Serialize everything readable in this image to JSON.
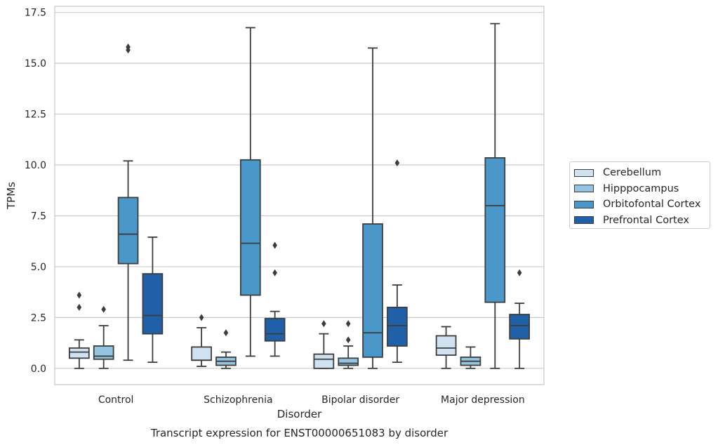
{
  "chart_data": {
    "type": "box",
    "caption": "Transcript expression for ENST00000651083 by disorder",
    "xlabel": "Disorder",
    "ylabel": "TPMs",
    "ylim": [
      -0.8,
      17.8
    ],
    "yticks": [
      "0.0",
      "2.5",
      "5.0",
      "7.5",
      "10.0",
      "12.5",
      "15.0",
      "17.5"
    ],
    "ytick_values": [
      0,
      2.5,
      5,
      7.5,
      10,
      12.5,
      15,
      17.5
    ],
    "grid": true,
    "legend_position": "right",
    "categories": [
      "Control",
      "Schizophrenia",
      "Bipolar disorder",
      "Major depression"
    ],
    "series": [
      {
        "name": "Cerebellum",
        "color": "#d0e1f2",
        "boxes": [
          {
            "whisker_low": 0.0,
            "q1": 0.5,
            "median": 0.8,
            "q3": 1.0,
            "whisker_high": 1.4,
            "outliers": [
              3.0,
              3.6
            ]
          },
          {
            "whisker_low": 0.1,
            "q1": 0.4,
            "median": 0.4,
            "q3": 1.05,
            "whisker_high": 2.0,
            "outliers": [
              2.5
            ]
          },
          {
            "whisker_low": 0.0,
            "q1": 0.0,
            "median": 0.45,
            "q3": 0.7,
            "whisker_high": 1.7,
            "outliers": [
              2.2
            ]
          },
          {
            "whisker_low": 0.0,
            "q1": 0.65,
            "median": 1.0,
            "q3": 1.6,
            "whisker_high": 2.05,
            "outliers": []
          }
        ]
      },
      {
        "name": "Hipppocampus",
        "color": "#94c4df",
        "boxes": [
          {
            "whisker_low": 0.0,
            "q1": 0.45,
            "median": 0.6,
            "q3": 1.1,
            "whisker_high": 2.1,
            "outliers": [
              2.9
            ]
          },
          {
            "whisker_low": 0.0,
            "q1": 0.15,
            "median": 0.35,
            "q3": 0.55,
            "whisker_high": 0.8,
            "outliers": [
              1.75
            ]
          },
          {
            "whisker_low": 0.0,
            "q1": 0.15,
            "median": 0.25,
            "q3": 0.5,
            "whisker_high": 1.1,
            "outliers": [
              1.4,
              2.2
            ]
          },
          {
            "whisker_low": 0.0,
            "q1": 0.15,
            "median": 0.35,
            "q3": 0.55,
            "whisker_high": 1.05,
            "outliers": []
          }
        ]
      },
      {
        "name": "Orbitofontal Cortex",
        "color": "#4a98c9",
        "boxes": [
          {
            "whisker_low": 0.4,
            "q1": 5.15,
            "median": 6.6,
            "q3": 8.4,
            "whisker_high": 10.2,
            "outliers": [
              15.65,
              15.8
            ]
          },
          {
            "whisker_low": 0.6,
            "q1": 3.6,
            "median": 6.15,
            "q3": 10.25,
            "whisker_high": 16.75,
            "outliers": []
          },
          {
            "whisker_low": 0.0,
            "q1": 0.55,
            "median": 1.75,
            "q3": 7.1,
            "whisker_high": 15.75,
            "outliers": []
          },
          {
            "whisker_low": 0.0,
            "q1": 3.25,
            "median": 8.0,
            "q3": 10.35,
            "whisker_high": 16.95,
            "outliers": []
          }
        ]
      },
      {
        "name": "Prefrontal Cortex",
        "color": "#2060a8",
        "boxes": [
          {
            "whisker_low": 0.3,
            "q1": 1.7,
            "median": 2.6,
            "q3": 4.65,
            "whisker_high": 6.45,
            "outliers": []
          },
          {
            "whisker_low": 0.6,
            "q1": 1.35,
            "median": 1.7,
            "q3": 2.45,
            "whisker_high": 2.8,
            "outliers": [
              4.7,
              6.05
            ]
          },
          {
            "whisker_low": 0.3,
            "q1": 1.1,
            "median": 2.1,
            "q3": 3.0,
            "whisker_high": 4.1,
            "outliers": [
              10.1
            ]
          },
          {
            "whisker_low": 0.0,
            "q1": 1.45,
            "median": 2.1,
            "q3": 2.65,
            "whisker_high": 3.2,
            "outliers": [
              4.7
            ]
          }
        ]
      }
    ]
  }
}
